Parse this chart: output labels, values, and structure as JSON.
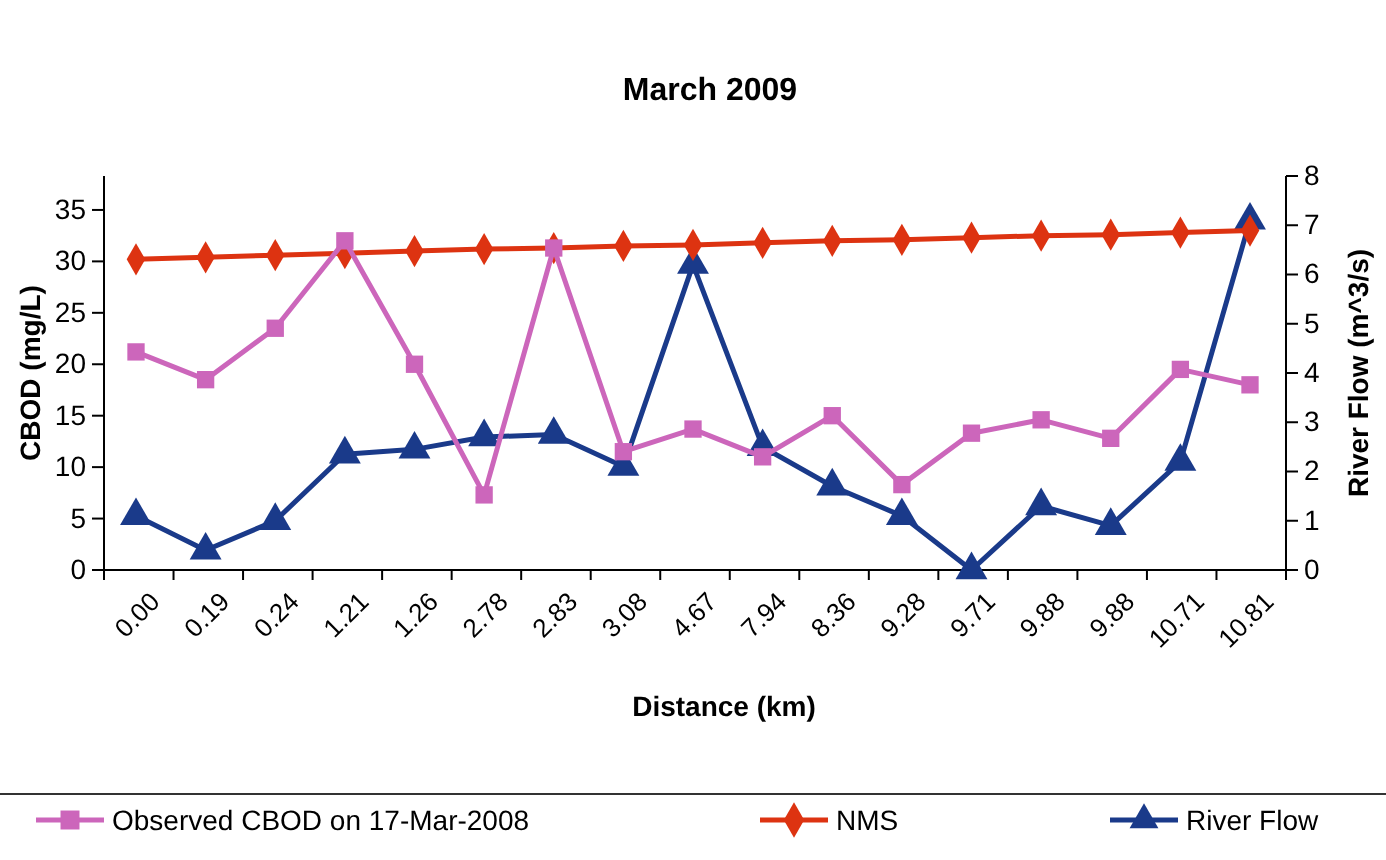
{
  "chart_data": {
    "type": "line",
    "title": "March 2009",
    "xlabel": "Distance (km)",
    "ylabel": "CBOD (mg/L)",
    "y2label": "River Flow (m^3/s)",
    "categories": [
      "0.00",
      "0.19",
      "0.24",
      "1.21",
      "1.26",
      "2.78",
      "2.83",
      "3.08",
      "4.67",
      "7.94",
      "8.36",
      "9.28",
      "9.71",
      "9.88",
      "9.88",
      "10.71",
      "10.81"
    ],
    "series": [
      {
        "name": "Observed CBOD on 17-Mar-2008",
        "color": "#cc66bb",
        "marker": "square",
        "values": [
          21.2,
          18.5,
          23.5,
          32,
          20,
          7.3,
          31.3,
          11.5,
          13.7,
          11,
          15,
          8.3,
          13.3,
          14.6,
          12.8,
          19.5,
          18
        ]
      },
      {
        "name": "NMS",
        "color": "#dd3311",
        "marker": "diamond",
        "values": [
          30.2,
          30.4,
          30.6,
          30.8,
          31,
          31.2,
          31.3,
          31.5,
          31.6,
          31.8,
          32,
          32.1,
          32.3,
          32.5,
          32.6,
          32.8,
          33
        ]
      },
      {
        "name": "River Flow",
        "color": "#1a3a8a",
        "marker": "triangle",
        "axis": "y2",
        "values": [
          1.1,
          0.4,
          1.0,
          2.35,
          2.45,
          2.7,
          2.75,
          2.1,
          6.2,
          2.5,
          1.7,
          1.1,
          0,
          1.3,
          0.9,
          2.2,
          7.1
        ]
      }
    ],
    "ylim": [
      0,
      38.3
    ],
    "yticks": [
      0,
      5,
      10,
      15,
      20,
      25,
      30,
      35
    ],
    "y2lim": [
      0,
      8
    ],
    "y2ticks": [
      0,
      1,
      2,
      3,
      4,
      5,
      6,
      7,
      8
    ],
    "legend": "bottom",
    "grid": false
  }
}
